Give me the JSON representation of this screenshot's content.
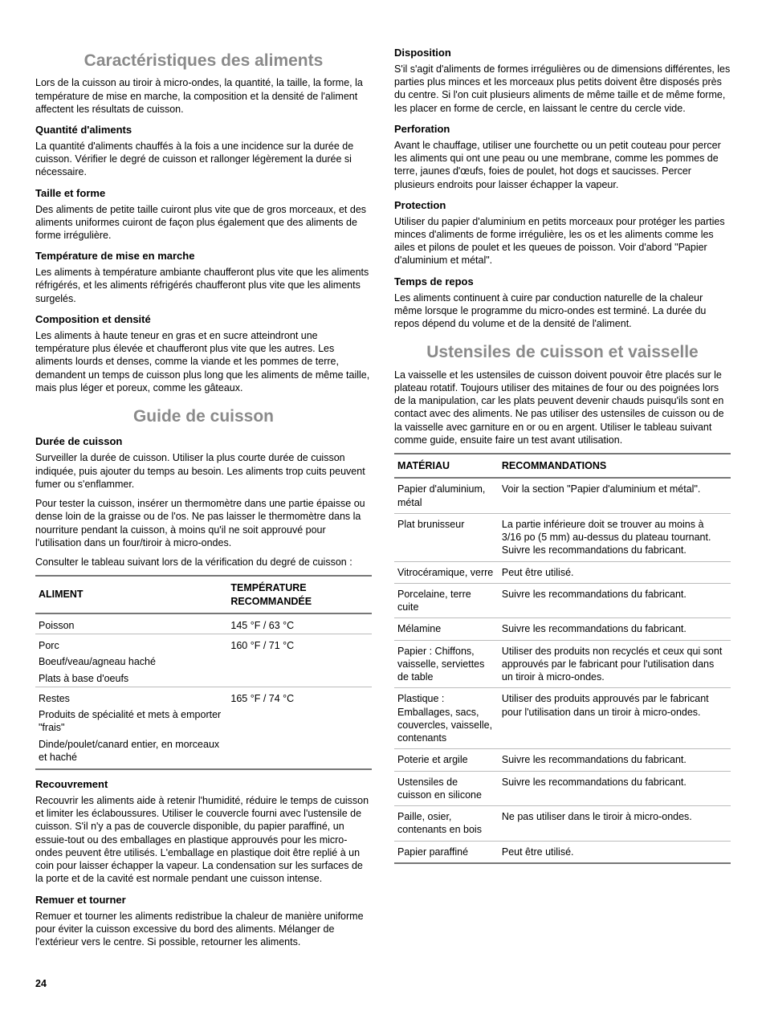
{
  "left": {
    "sec1": {
      "title": "Caractéristiques des aliments",
      "intro": "Lors de la cuisson au tiroir à micro-ondes, la quantité, la taille, la forme, la température de mise en marche, la composition et la densité de l'aliment affectent les résultats de cuisson.",
      "subs": [
        {
          "h": "Quantité d'aliments",
          "p": "La quantité d'aliments chauffés à la fois a une incidence sur la durée de cuisson. Vérifier le degré de cuisson et rallonger légèrement la durée si nécessaire."
        },
        {
          "h": "Taille et forme",
          "p": "Des aliments de petite taille cuiront plus vite que de gros morceaux, et des aliments uniformes cuiront de façon plus également que des aliments de forme irrégulière."
        },
        {
          "h": "Température de mise en marche",
          "p": "Les aliments à température ambiante chaufferont plus vite que les aliments réfrigérés, et les aliments réfrigérés chaufferont plus vite que les aliments surgelés."
        },
        {
          "h": "Composition et densité",
          "p": "Les aliments à haute teneur en gras et en sucre atteindront une température plus élevée et chaufferont plus vite que les autres. Les aliments lourds et denses, comme la viande et les pommes de terre, demandent un temps de cuisson plus long que les aliments de même taille, mais plus léger et poreux, comme les gâteaux."
        }
      ]
    },
    "sec2": {
      "title": "Guide de cuisson",
      "duree_h": "Durée de cuisson",
      "duree_p1": "Surveiller la durée de cuisson. Utiliser la plus courte durée de cuisson indiquée, puis ajouter du temps au besoin. Les aliments trop cuits peuvent fumer ou s'enflammer.",
      "duree_p2": "Pour tester la cuisson, insérer un thermomètre dans une partie épaisse ou dense loin de la graisse ou de l'os. Ne pas laisser le thermomètre dans la nourriture pendant la cuisson, à moins qu'il ne soit approuvé pour l'utilisation dans un four/tiroir à micro-ondes.",
      "duree_p3": "Consulter le tableau suivant lors de la vérification du degré de cuisson :",
      "tbl_h1": "ALIMENT",
      "tbl_h2": "TEMPÉRATURE RECOMMANDÉE",
      "groups": [
        {
          "temp": "145 °F / 63 °C",
          "items": [
            "Poisson"
          ]
        },
        {
          "temp": "160 °F / 71 °C",
          "items": [
            "Porc",
            "Boeuf/veau/agneau haché",
            "Plats à base d'oeufs"
          ]
        },
        {
          "temp": "165 °F / 74 °C",
          "items": [
            "Restes",
            "Produits de spécialité et mets à emporter \"frais\"",
            "Dinde/poulet/canard entier, en morceaux et haché"
          ]
        }
      ],
      "subs2": [
        {
          "h": "Recouvrement",
          "p": "Recouvrir les aliments aide à retenir l'humidité, réduire le temps de cuisson et limiter les éclaboussures. Utiliser le couvercle fourni avec l'ustensile de cuisson. S'il n'y a pas de couvercle disponible, du papier paraffiné, un essuie-tout ou des emballages en plastique approuvés pour les micro-ondes peuvent être utilisés. L'emballage en plastique doit être replié à un coin pour laisser échapper la vapeur. La condensation sur les surfaces de la porte et de la cavité est normale pendant une cuisson intense."
        },
        {
          "h": "Remuer et tourner",
          "p": "Remuer et tourner les aliments redistribue la chaleur de manière uniforme pour éviter la cuisson excessive du bord des aliments. Mélanger de l'extérieur vers le centre. Si possible, retourner les aliments."
        }
      ]
    }
  },
  "right": {
    "subs3": [
      {
        "h": "Disposition",
        "p": "S'il s'agit d'aliments de formes irrégulières ou de dimensions différentes, les parties plus minces et les morceaux plus petits doivent être disposés près du centre. Si l'on cuit plusieurs aliments de même taille et de même forme, les placer en forme de cercle, en laissant le centre du cercle vide."
      },
      {
        "h": "Perforation",
        "p": "Avant le chauffage, utiliser une fourchette ou un petit couteau pour percer les aliments qui ont une peau ou une membrane, comme les pommes de terre, jaunes d'œufs, foies de poulet, hot dogs et saucisses. Percer plusieurs endroits pour laisser échapper la vapeur."
      },
      {
        "h": "Protection",
        "p": "Utiliser du papier d'aluminium en petits morceaux pour protéger les parties minces d'aliments de forme irrégulière, les os et les aliments comme les ailes et pilons de poulet et les queues de poisson. Voir d'abord \"Papier d'aluminium et métal\"."
      },
      {
        "h": "Temps de repos",
        "p": "Les aliments continuent à cuire par conduction naturelle de la chaleur même lorsque le programme du micro-ondes est terminé. La durée du repos dépend du volume et de la densité de l'aliment."
      }
    ],
    "sec3": {
      "title": "Ustensiles de cuisson et vaisselle",
      "intro": "La vaisselle et les ustensiles de cuisson doivent pouvoir être placés sur le plateau rotatif. Toujours utiliser des mitaines de four ou des poignées lors de la manipulation, car les plats peuvent devenir chauds puisqu'ils sont en contact avec des aliments. Ne pas utiliser des ustensiles de cuisson ou de la vaisselle avec garniture en or ou en argent. Utiliser le tableau suivant comme guide, ensuite faire un test avant utilisation.",
      "tbl_h1": "MATÉRIAU",
      "tbl_h2": "RECOMMANDATIONS",
      "rows": [
        {
          "m": "Papier d'aluminium, métal",
          "r": "Voir la section \"Papier d'aluminium et métal\"."
        },
        {
          "m": "Plat brunisseur",
          "r": "La partie inférieure doit se trouver au moins à 3/16 po (5 mm) au-dessus du plateau tournant. Suivre les recommandations du fabricant."
        },
        {
          "m": "Vitrocéramique, verre",
          "r": "Peut être utilisé."
        },
        {
          "m": "Porcelaine, terre cuite",
          "r": "Suivre les recommandations du fabricant."
        },
        {
          "m": "Mélamine",
          "r": "Suivre les recommandations du fabricant."
        },
        {
          "m": "Papier : Chiffons, vaisselle, serviettes de table",
          "r": "Utiliser des produits non recyclés et ceux qui sont approuvés par le fabricant pour l'utilisation dans un tiroir à micro-ondes."
        },
        {
          "m": "Plastique : Emballages, sacs, couvercles, vaisselle, contenants",
          "r": "Utiliser des produits approuvés par le fabricant pour l'utilisation dans un tiroir à micro-ondes."
        },
        {
          "m": "Poterie et argile",
          "r": "Suivre les recommandations du fabricant."
        },
        {
          "m": "Ustensiles de cuisson en silicone",
          "r": "Suivre les recommandations du fabricant."
        },
        {
          "m": "Paille, osier, contenants en bois",
          "r": "Ne pas utiliser dans le tiroir à micro-ondes."
        },
        {
          "m": "Papier paraffiné",
          "r": "Peut être utilisé."
        }
      ]
    }
  },
  "page": "24"
}
